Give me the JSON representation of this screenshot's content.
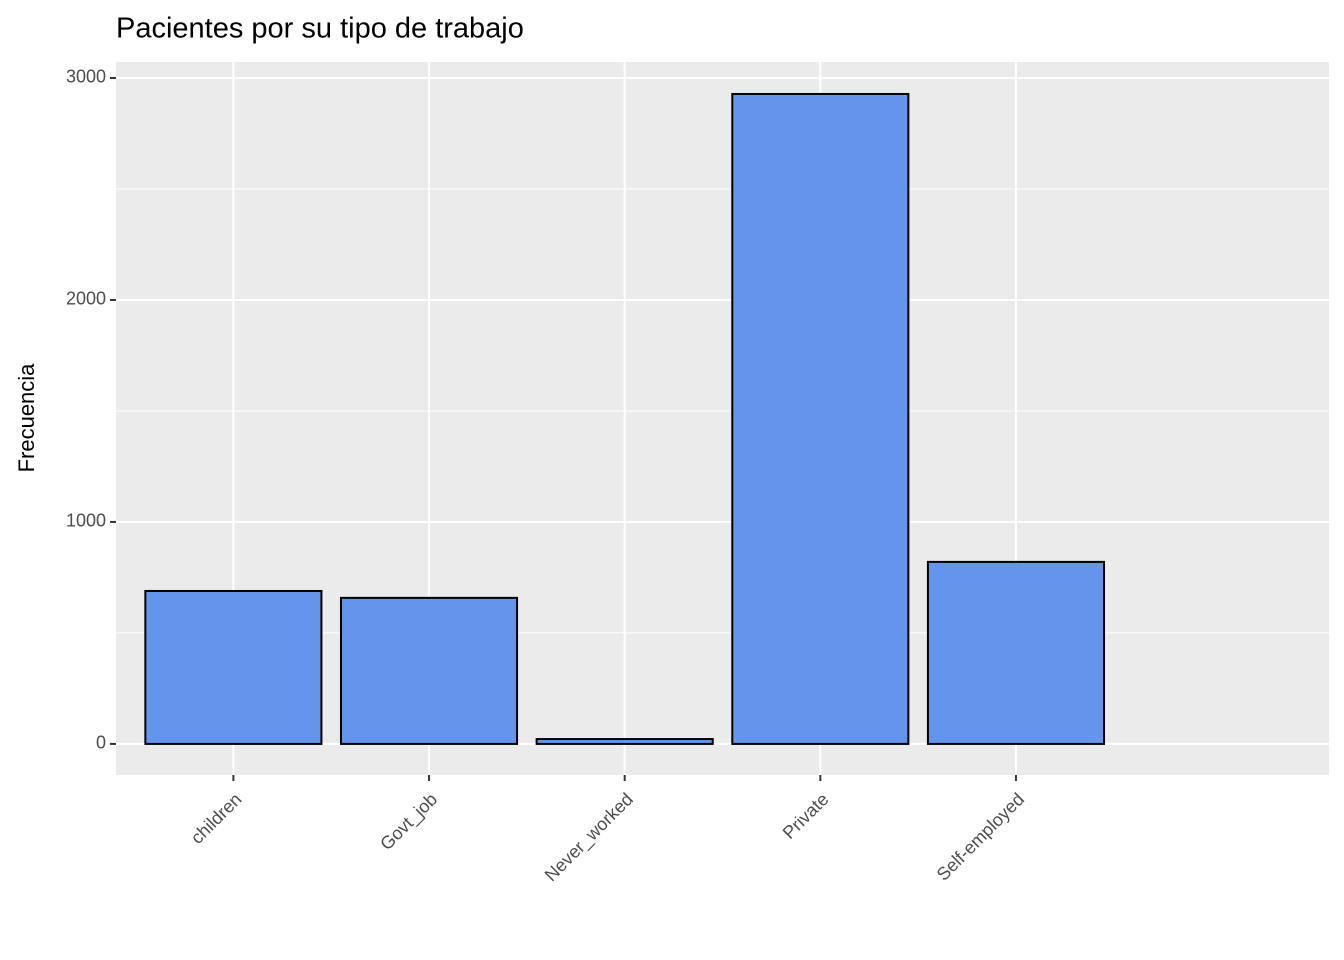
{
  "chart_data": {
    "type": "bar",
    "title": "Pacientes por su tipo de trabajo",
    "y_label": "Frecuencia",
    "categories": [
      "children",
      "Govt_job",
      "Never_worked",
      "Private",
      "Self-employed"
    ],
    "values": [
      689,
      658,
      22,
      2928,
      820
    ],
    "color": "#6495ed",
    "ylim": [
      -140,
      3072
    ],
    "yticks": [
      0,
      1000,
      2000,
      3000
    ],
    "y_minor_ticks": [
      500,
      1500,
      2500
    ],
    "grid": true
  }
}
